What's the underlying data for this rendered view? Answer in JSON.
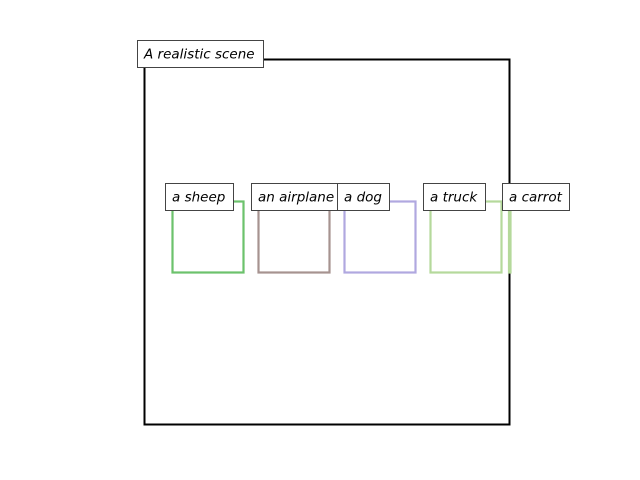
{
  "scene": {
    "title": "A realistic scene",
    "frame_color": "#000000"
  },
  "objects": [
    {
      "label": "a sheep",
      "color": "#6cc26c"
    },
    {
      "label": "an airplane",
      "color": "#a69390"
    },
    {
      "label": "a dog",
      "color": "#b0a8e0"
    },
    {
      "label": "a truck",
      "color": "#b5d99b"
    },
    {
      "label": "a carrot",
      "color": "#b5d99b"
    }
  ]
}
